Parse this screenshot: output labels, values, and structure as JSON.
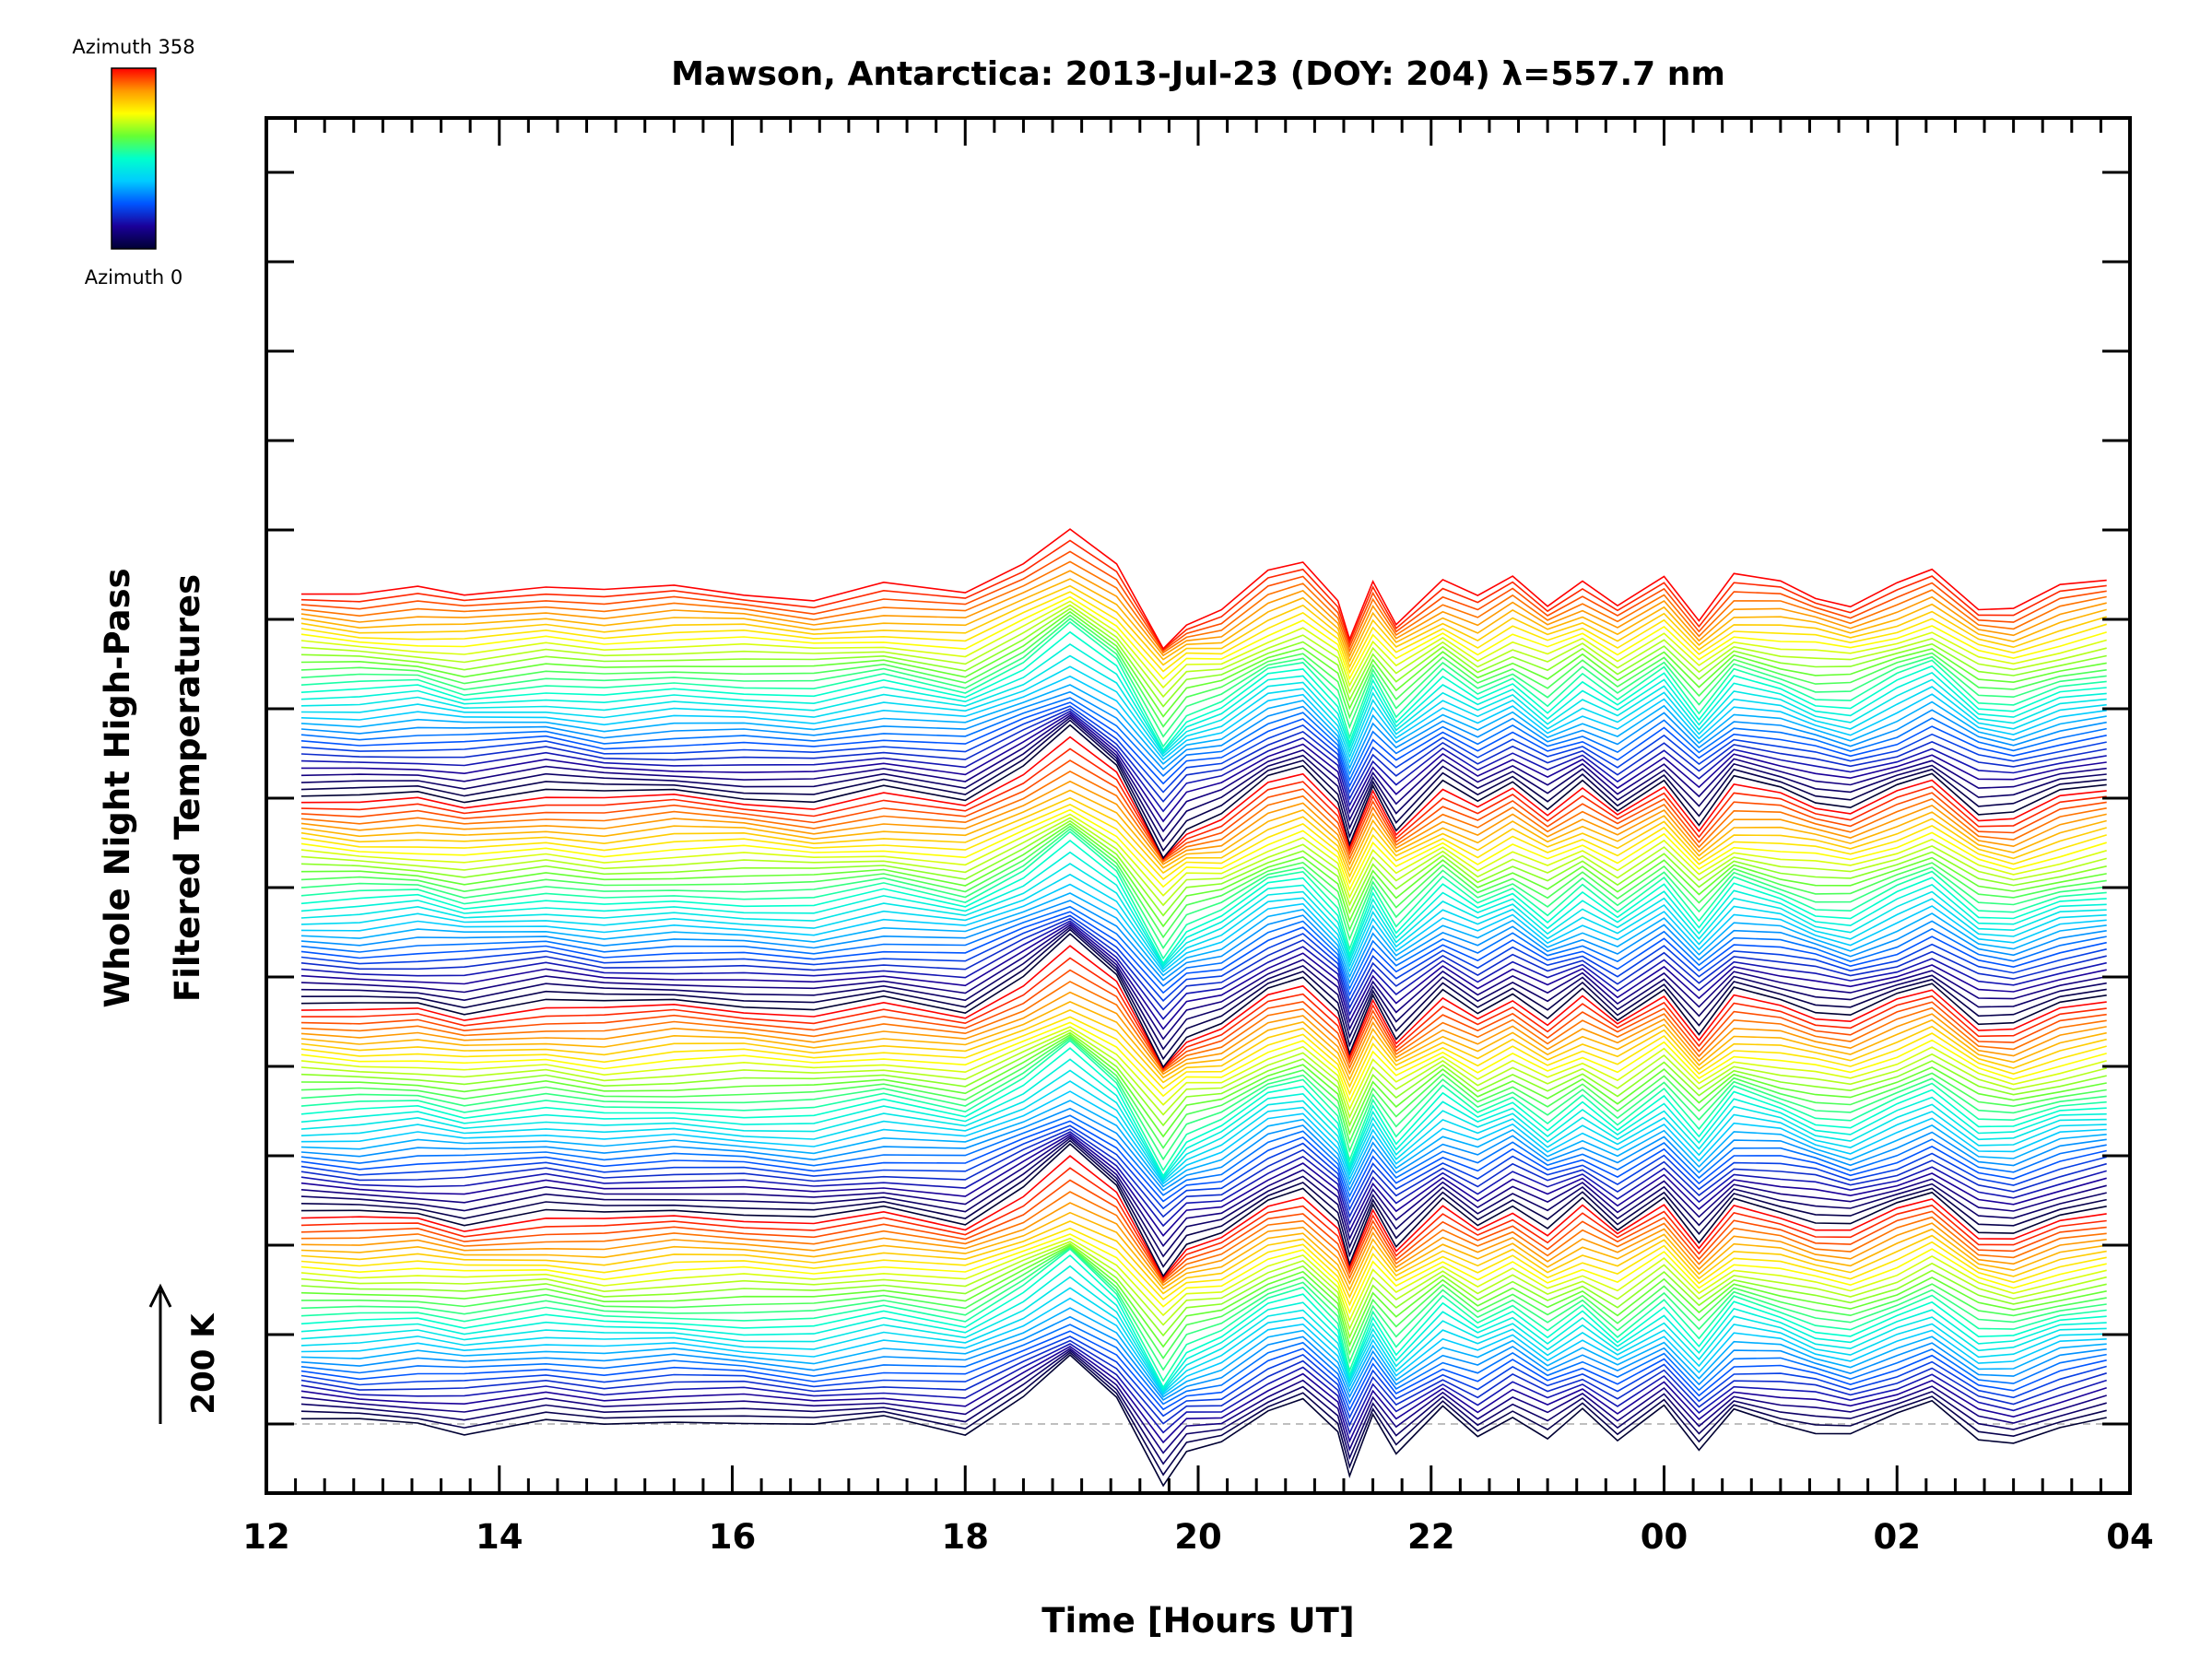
{
  "chart_data": {
    "type": "line",
    "title": "Mawson, Antarctica: 2013-Jul-23 (DOY: 204) λ=557.7 nm",
    "xlabel": "Time [Hours UT]",
    "ylabel_line1": "Whole Night High-Pass",
    "ylabel_line2": "Filtered Temperatures",
    "scale_bar_label": "200 K",
    "colorbar": {
      "max_label": "Azimuth 358",
      "min_label": "Azimuth 0",
      "colors": [
        "#ff0000",
        "#ff9900",
        "#ffff00",
        "#66ff33",
        "#00ffcc",
        "#00ccff",
        "#0055ff",
        "#1a0099",
        "#000033"
      ]
    },
    "x_ticks": [
      "12",
      "14",
      "16",
      "18",
      "20",
      "22",
      "00",
      "02",
      "04"
    ],
    "xlim": [
      12,
      28
    ],
    "grid": false,
    "series_count": 132,
    "series_note": "Stacked traces, one per azimuth (0 to 358), offset vertically; colour encodes azimuth.",
    "base_profile": {
      "x": [
        12.3,
        12.8,
        13.3,
        13.7,
        14.4,
        14.9,
        15.5,
        16.1,
        16.7,
        17.3,
        18.0,
        18.5,
        18.9,
        19.3,
        19.7,
        19.9,
        20.2,
        20.6,
        20.9,
        21.2,
        21.3,
        21.5,
        21.7,
        22.1,
        22.4,
        22.7,
        23.0,
        23.3,
        23.6,
        24.0,
        24.3,
        24.6,
        25.0,
        25.3,
        25.6,
        26.0,
        26.3,
        26.7,
        27.0,
        27.4,
        27.8
      ],
      "y": [
        5,
        0,
        5,
        -10,
        10,
        -5,
        5,
        0,
        -10,
        15,
        -10,
        60,
        130,
        50,
        -120,
        -60,
        -40,
        35,
        60,
        -20,
        -110,
        20,
        -60,
        30,
        -20,
        25,
        -30,
        20,
        -35,
        40,
        -55,
        30,
        10,
        -15,
        -30,
        15,
        50,
        -30,
        -40,
        0,
        20
      ]
    }
  }
}
